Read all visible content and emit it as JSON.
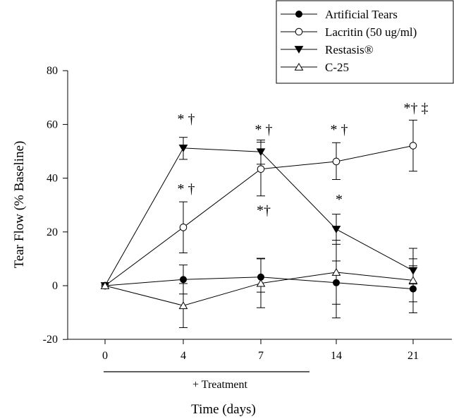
{
  "chart_data": {
    "type": "line",
    "title": "",
    "xlabel": "Time (days)",
    "ylabel": "Tear Flow (% Baseline)",
    "ylim": [
      -20,
      80
    ],
    "yticks": [
      -20,
      0,
      20,
      40,
      60,
      80
    ],
    "ytick_labels": [
      "-20",
      "0",
      "20",
      "40",
      "60",
      "80"
    ],
    "categories": [
      "0",
      "4",
      "7",
      "14",
      "21"
    ],
    "grid": false,
    "legend_position": "top-right",
    "treatment_label": "+ Treatment",
    "series": [
      {
        "name": "Artificial Tears",
        "marker": "circle-filled",
        "values": [
          0,
          2.3,
          3.2,
          1.1,
          -1.2
        ],
        "err_low": [
          0,
          5.4,
          5.6,
          13.1,
          8.9
        ],
        "err_high": [
          0,
          5.4,
          7.0,
          8.1,
          8.6
        ]
      },
      {
        "name": "Lacritin (50 ug/ml)",
        "marker": "circle-open",
        "values": [
          0,
          21.7,
          43.4,
          46.2,
          52.1
        ],
        "err_low": [
          0,
          9.5,
          10.0,
          6.7,
          9.5
        ],
        "err_high": [
          0,
          9.5,
          10.0,
          7.0,
          9.5
        ]
      },
      {
        "name": "Restasis®",
        "marker": "triangle-down-filled",
        "values": [
          0,
          51.2,
          49.8,
          21.0,
          5.6
        ],
        "err_low": [
          0,
          4.2,
          4.6,
          5.6,
          5.0
        ],
        "err_high": [
          0,
          4.0,
          4.4,
          5.6,
          8.3
        ]
      },
      {
        "name": "C-25",
        "marker": "triangle-up-open",
        "values": [
          0,
          -7.4,
          0.9,
          5.0,
          2.0
        ],
        "err_low": [
          0,
          8.2,
          9.1,
          11.9,
          8.0
        ],
        "err_high": [
          0,
          8.2,
          9.1,
          11.9,
          8.0
        ]
      }
    ],
    "annotations": [
      {
        "text": "* †",
        "x": "4",
        "y": 62
      },
      {
        "text": "* †",
        "x": "4",
        "y": 36
      },
      {
        "text": "* †",
        "x": "7",
        "y": 58
      },
      {
        "text": "*†",
        "x": "7",
        "y": 28
      },
      {
        "text": "* †",
        "x": "14",
        "y": 58
      },
      {
        "text": "*",
        "x": "14",
        "y": 32
      },
      {
        "text": "*† ‡",
        "x": "21",
        "y": 66
      }
    ]
  }
}
